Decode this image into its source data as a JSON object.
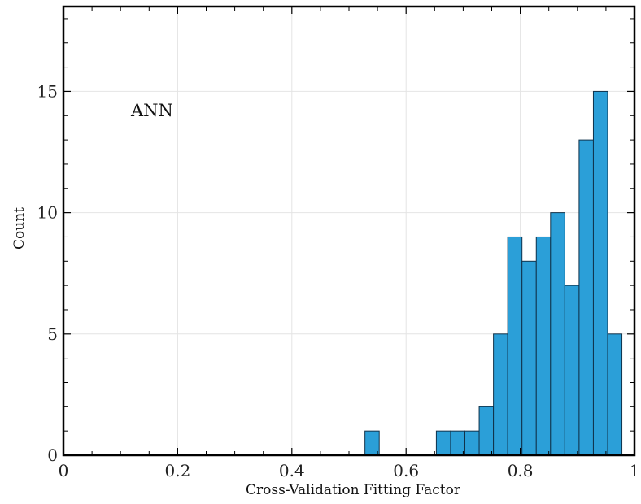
{
  "chart_data": {
    "type": "bar",
    "title": "",
    "annotation": "ANN",
    "xlabel": "Cross-Validation Fitting Factor",
    "ylabel": "Count",
    "xlim": [
      0,
      1
    ],
    "ylim": [
      0,
      18.5
    ],
    "xticks": [
      0,
      0.2,
      0.4,
      0.6,
      0.8,
      1
    ],
    "xtick_labels": [
      "0",
      "0.2",
      "0.4",
      "0.6",
      "0.8",
      "1"
    ],
    "yticks": [
      0,
      5,
      10,
      15
    ],
    "ytick_labels": [
      "0",
      "5",
      "10",
      "15"
    ],
    "grid": true,
    "bar_color": "#2b9fd8",
    "bar_edge_color": "#10324a",
    "bins": [
      {
        "start": 0.528,
        "end": 0.553,
        "count": 1
      },
      {
        "start": 0.653,
        "end": 0.678,
        "count": 1
      },
      {
        "start": 0.678,
        "end": 0.703,
        "count": 1
      },
      {
        "start": 0.703,
        "end": 0.728,
        "count": 1
      },
      {
        "start": 0.728,
        "end": 0.753,
        "count": 2
      },
      {
        "start": 0.753,
        "end": 0.778,
        "count": 5
      },
      {
        "start": 0.778,
        "end": 0.803,
        "count": 9
      },
      {
        "start": 0.803,
        "end": 0.828,
        "count": 8
      },
      {
        "start": 0.828,
        "end": 0.853,
        "count": 9
      },
      {
        "start": 0.853,
        "end": 0.878,
        "count": 10
      },
      {
        "start": 0.878,
        "end": 0.903,
        "count": 7
      },
      {
        "start": 0.903,
        "end": 0.928,
        "count": 13
      },
      {
        "start": 0.928,
        "end": 0.953,
        "count": 15
      },
      {
        "start": 0.953,
        "end": 0.978,
        "count": 5
      }
    ]
  }
}
